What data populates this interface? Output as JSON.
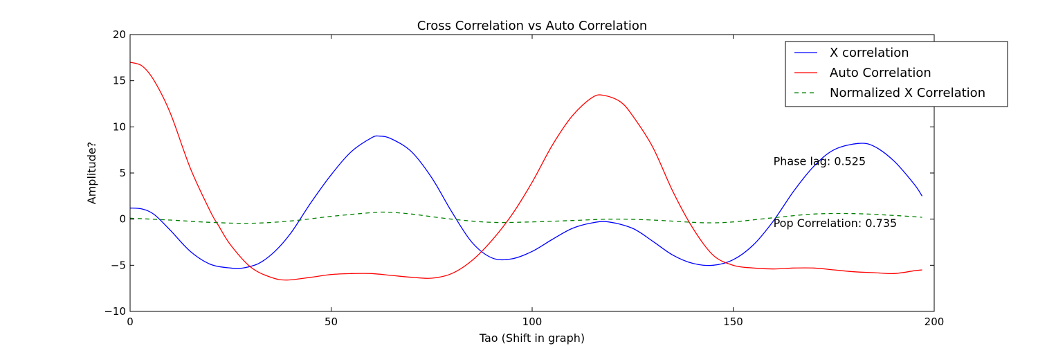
{
  "chart_data": {
    "type": "line",
    "title": "Cross Correlation vs Auto Correlation",
    "xlabel": "Tao (Shift in graph)",
    "ylabel": "Amplitude?",
    "xlim": [
      0,
      200
    ],
    "ylim": [
      -10,
      20
    ],
    "xticks": [
      0,
      50,
      100,
      150,
      200
    ],
    "yticks": [
      -10,
      -5,
      0,
      5,
      10,
      15,
      20
    ],
    "grid": false,
    "legend_position": "top-right",
    "series": [
      {
        "name": "X correlation",
        "color": "#0000ff",
        "style": "solid",
        "x": [
          0,
          3,
          6,
          10,
          15,
          20,
          25,
          28,
          32,
          36,
          40,
          45,
          50,
          55,
          60,
          62,
          65,
          70,
          75,
          80,
          85,
          90,
          95,
          100,
          105,
          110,
          115,
          119,
          125,
          130,
          135,
          140,
          145,
          150,
          155,
          160,
          165,
          170,
          175,
          181,
          185,
          190,
          195,
          197
        ],
        "y": [
          1.2,
          1.1,
          0.5,
          -1.2,
          -3.5,
          -4.9,
          -5.3,
          -5.3,
          -4.8,
          -3.5,
          -1.5,
          1.8,
          4.8,
          7.3,
          8.8,
          9.0,
          8.7,
          7.3,
          4.5,
          0.8,
          -2.5,
          -4.2,
          -4.3,
          -3.5,
          -2.2,
          -1.0,
          -0.4,
          -0.3,
          -1.0,
          -2.4,
          -3.9,
          -4.8,
          -5.0,
          -4.4,
          -2.8,
          -0.2,
          3.0,
          5.7,
          7.5,
          8.2,
          7.9,
          6.3,
          3.8,
          2.5
        ]
      },
      {
        "name": "Auto Correlation",
        "color": "#ff0000",
        "style": "solid",
        "x": [
          0,
          3,
          6,
          10,
          15,
          20,
          22,
          25,
          30,
          35,
          39,
          45,
          50,
          55,
          60,
          65,
          70,
          75,
          80,
          85,
          90,
          95,
          100,
          105,
          110,
          115,
          118,
          122,
          125,
          130,
          135,
          140,
          145,
          150,
          155,
          160,
          165,
          170,
          175,
          180,
          185,
          190,
          195,
          197
        ],
        "y": [
          17.0,
          16.6,
          15.0,
          11.5,
          5.5,
          0.8,
          -0.7,
          -2.8,
          -5.2,
          -6.3,
          -6.6,
          -6.3,
          -6.0,
          -5.9,
          -5.9,
          -6.1,
          -6.3,
          -6.4,
          -5.9,
          -4.5,
          -2.3,
          0.5,
          4.0,
          8.0,
          11.2,
          13.2,
          13.4,
          12.7,
          11.2,
          7.8,
          3.0,
          -1.0,
          -3.9,
          -5.0,
          -5.3,
          -5.4,
          -5.3,
          -5.3,
          -5.5,
          -5.7,
          -5.8,
          -5.9,
          -5.6,
          -5.5
        ]
      },
      {
        "name": "Normalized X Correlation",
        "color": "#008000",
        "style": "dashed",
        "x": [
          0,
          10,
          20,
          30,
          40,
          50,
          60,
          64,
          70,
          80,
          90,
          100,
          110,
          120,
          130,
          140,
          145,
          150,
          160,
          170,
          180,
          190,
          197
        ],
        "y": [
          0.1,
          -0.1,
          -0.35,
          -0.45,
          -0.2,
          0.3,
          0.7,
          0.75,
          0.55,
          0.0,
          -0.35,
          -0.3,
          -0.15,
          0.0,
          -0.1,
          -0.35,
          -0.4,
          -0.3,
          0.15,
          0.55,
          0.6,
          0.4,
          0.2
        ]
      }
    ],
    "annotations": [
      {
        "text": "Phase lag: 0.525",
        "x": 160,
        "y": 6.3
      },
      {
        "text": "Pop Correlation: 0.735",
        "x": 160,
        "y": -0.4
      }
    ]
  }
}
